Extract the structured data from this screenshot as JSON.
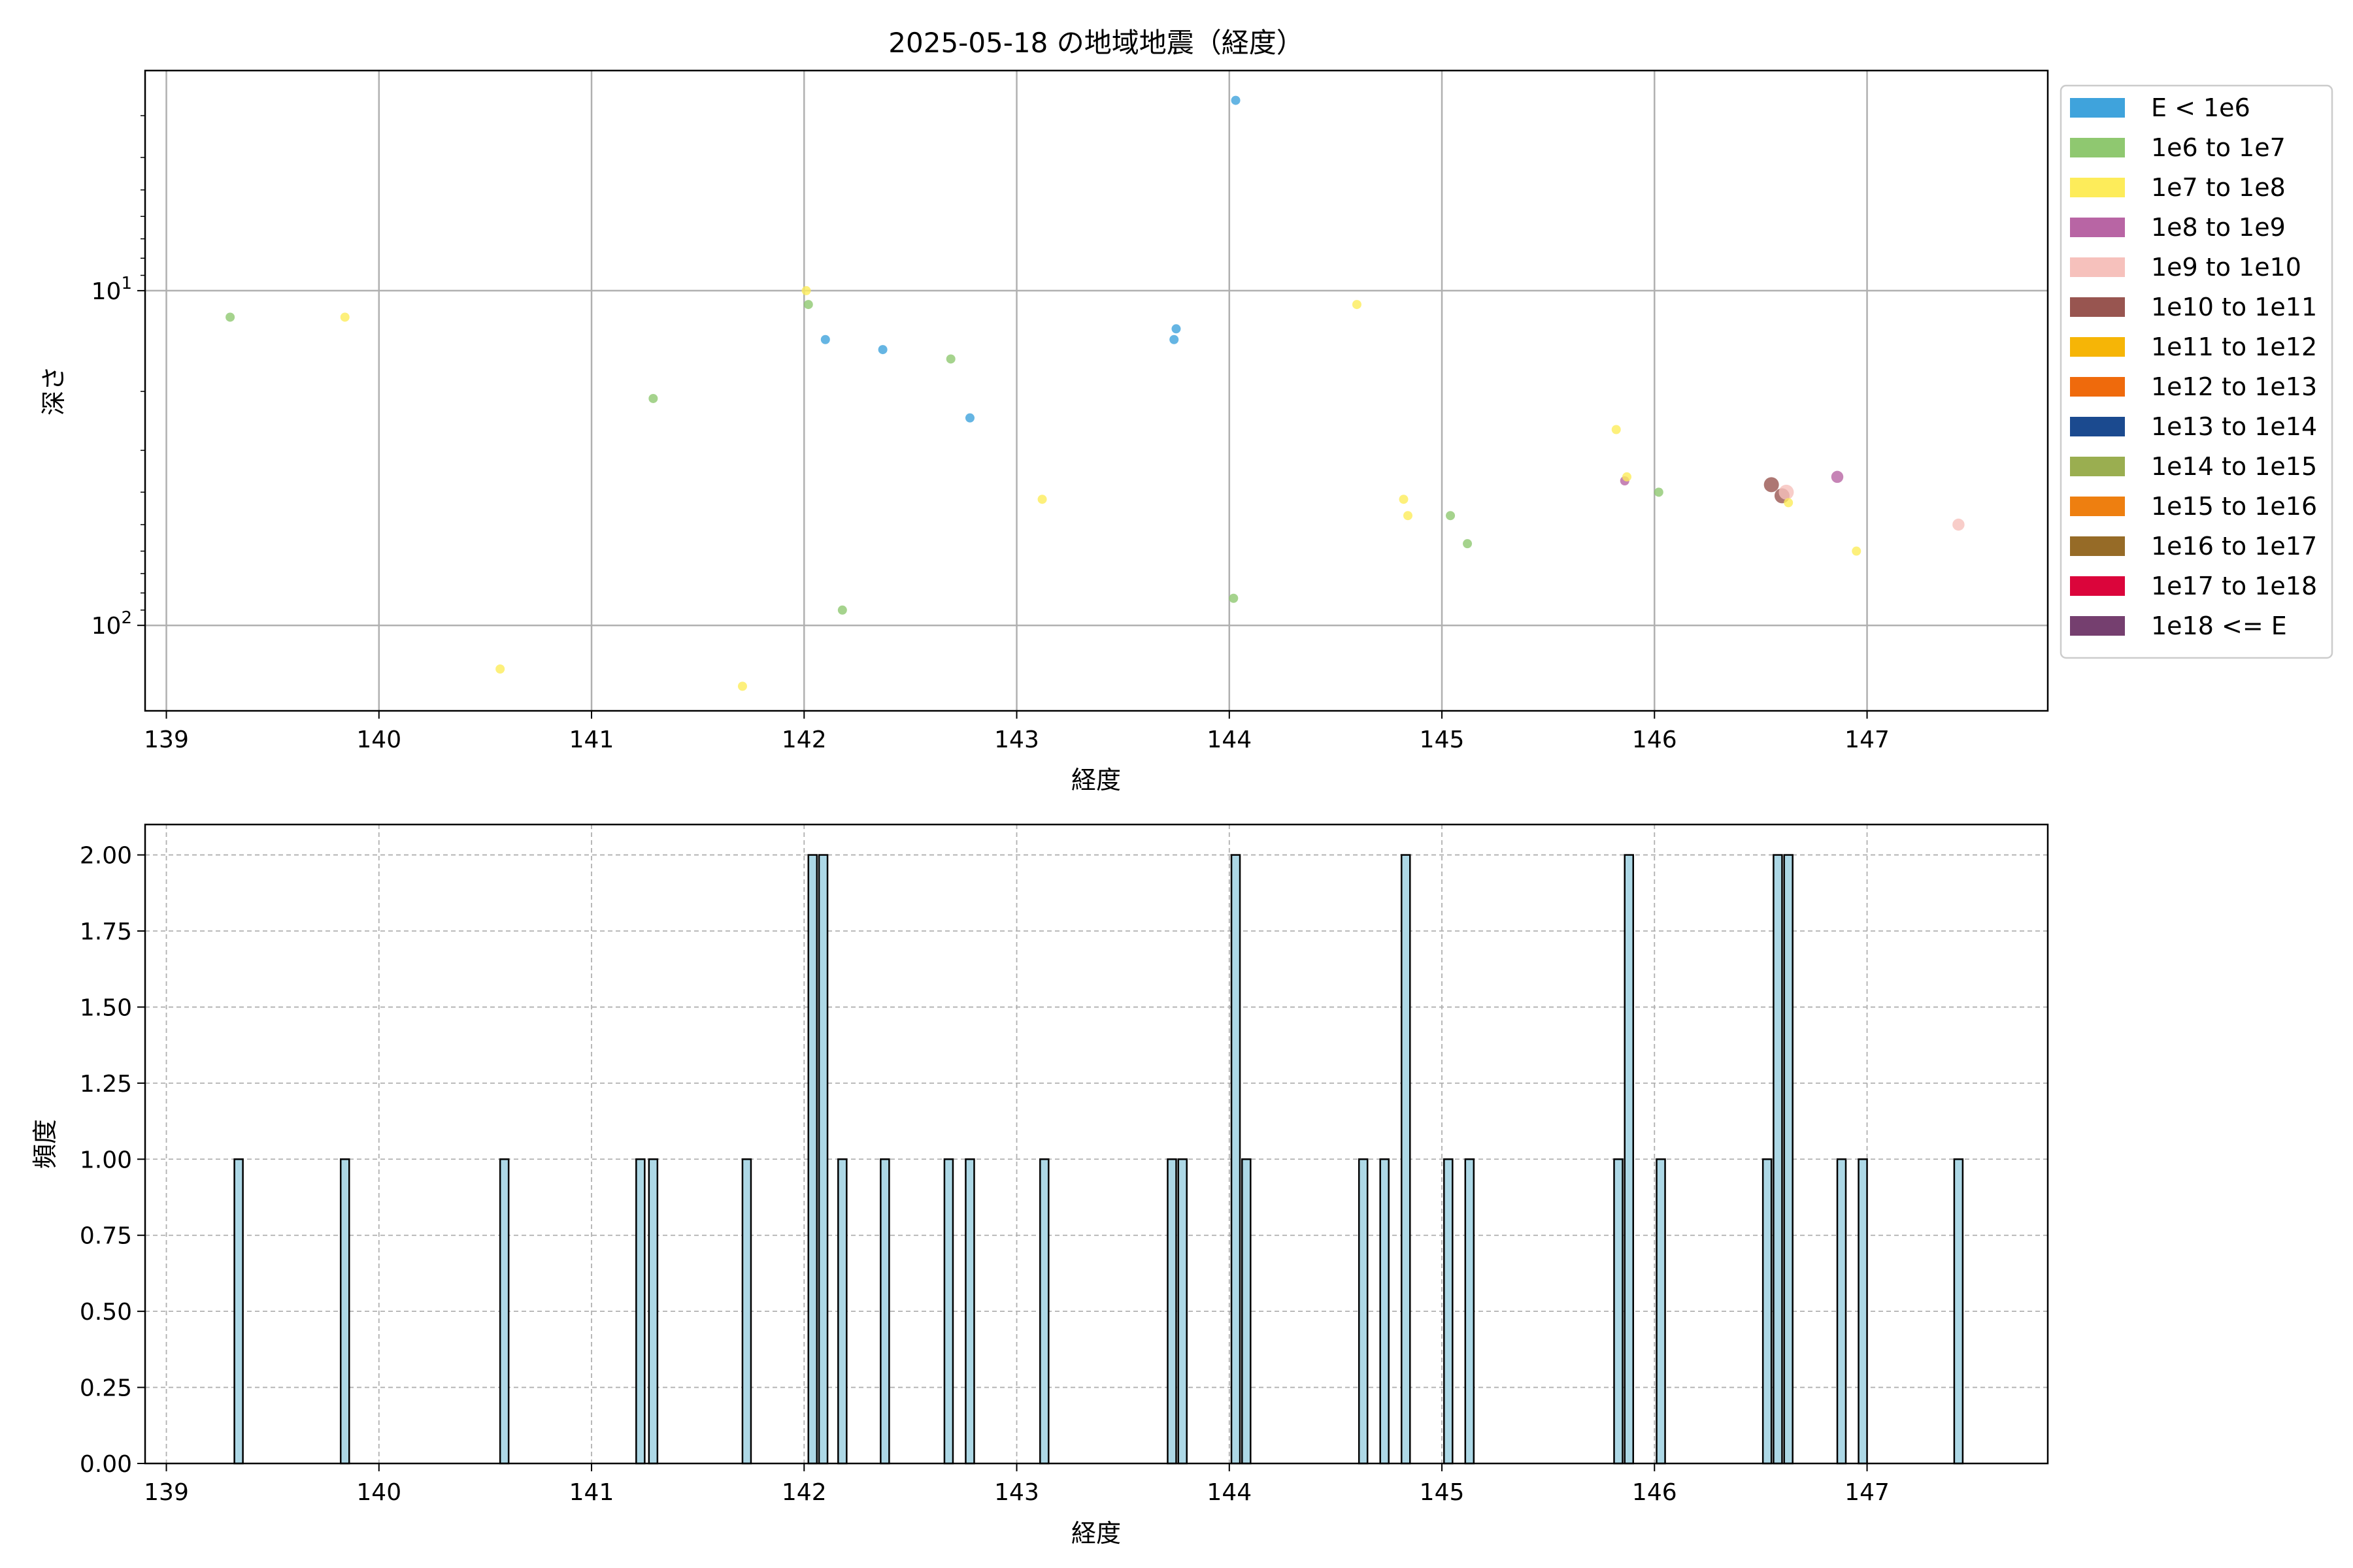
{
  "chart_data": [
    {
      "type": "scatter",
      "title": "2025-05-18 の地域地震（経度）",
      "xlabel": "経度",
      "ylabel": "深さ",
      "yscale": "log",
      "yaxis_inverted": true,
      "xlim": [
        138.9,
        147.85
      ],
      "ylim": [
        180,
        2.2
      ],
      "xticks": [
        139,
        140,
        141,
        142,
        143,
        144,
        145,
        146,
        147
      ],
      "yticks": [
        {
          "value": 10,
          "label": "10^1"
        },
        {
          "value": 100,
          "label": "10^2"
        }
      ],
      "grid": true,
      "legend": {
        "placement": "outside-right",
        "entries": [
          {
            "label": "E < 1e6",
            "color": "#3fa3dc"
          },
          {
            "label": "1e6 to 1e7",
            "color": "#8fc870"
          },
          {
            "label": "1e7 to 1e8",
            "color": "#fdec5a"
          },
          {
            "label": "1e8 to 1e9",
            "color": "#b865a4"
          },
          {
            "label": "1e9 to 1e10",
            "color": "#f6c1bc"
          },
          {
            "label": "1e10 to 1e11",
            "color": "#985550"
          },
          {
            "label": "1e11 to 1e12",
            "color": "#f6b506"
          },
          {
            "label": "1e12 to 1e13",
            "color": "#ef6a0c"
          },
          {
            "label": "1e13 to 1e14",
            "color": "#1b4a8f"
          },
          {
            "label": "1e14 to 1e15",
            "color": "#9aae50"
          },
          {
            "label": "1e15 to 1e16",
            "color": "#ee7f10"
          },
          {
            "label": "1e16 to 1e17",
            "color": "#966b27"
          },
          {
            "label": "1e17 to 1e18",
            "color": "#db053b"
          },
          {
            "label": "1e18 <= E",
            "color": "#753f6f"
          }
        ]
      },
      "points": [
        {
          "x": 144.03,
          "y": 2.7,
          "color": "#3fa3dc",
          "size": 1
        },
        {
          "x": 139.3,
          "y": 12,
          "color": "#8fc870",
          "size": 1
        },
        {
          "x": 139.84,
          "y": 12,
          "color": "#fdec5a",
          "size": 1
        },
        {
          "x": 142.01,
          "y": 10,
          "color": "#fdec5a",
          "size": 1
        },
        {
          "x": 142.02,
          "y": 11,
          "color": "#8fc870",
          "size": 1
        },
        {
          "x": 142.1,
          "y": 14,
          "color": "#3fa3dc",
          "size": 1
        },
        {
          "x": 142.37,
          "y": 15,
          "color": "#3fa3dc",
          "size": 1
        },
        {
          "x": 142.69,
          "y": 16,
          "color": "#8fc870",
          "size": 1
        },
        {
          "x": 143.75,
          "y": 13,
          "color": "#3fa3dc",
          "size": 1
        },
        {
          "x": 143.74,
          "y": 14,
          "color": "#3fa3dc",
          "size": 1
        },
        {
          "x": 144.6,
          "y": 11,
          "color": "#fdec5a",
          "size": 1
        },
        {
          "x": 141.29,
          "y": 21,
          "color": "#8fc870",
          "size": 1
        },
        {
          "x": 142.78,
          "y": 24,
          "color": "#3fa3dc",
          "size": 1
        },
        {
          "x": 145.82,
          "y": 26,
          "color": "#fdec5a",
          "size": 1
        },
        {
          "x": 145.86,
          "y": 37,
          "color": "#b865a4",
          "size": 1
        },
        {
          "x": 145.87,
          "y": 36,
          "color": "#fdec5a",
          "size": 1
        },
        {
          "x": 146.02,
          "y": 40,
          "color": "#8fc870",
          "size": 1
        },
        {
          "x": 146.55,
          "y": 38,
          "color": "#985550",
          "size": 2
        },
        {
          "x": 146.6,
          "y": 41,
          "color": "#985550",
          "size": 2
        },
        {
          "x": 146.62,
          "y": 40,
          "color": "#f6c1bc",
          "size": 2
        },
        {
          "x": 146.63,
          "y": 43,
          "color": "#fdec5a",
          "size": 1
        },
        {
          "x": 146.86,
          "y": 36,
          "color": "#b865a4",
          "size": 1.5
        },
        {
          "x": 143.12,
          "y": 42,
          "color": "#fdec5a",
          "size": 1
        },
        {
          "x": 144.82,
          "y": 42,
          "color": "#fdec5a",
          "size": 1
        },
        {
          "x": 144.84,
          "y": 47,
          "color": "#fdec5a",
          "size": 1
        },
        {
          "x": 145.04,
          "y": 47,
          "color": "#8fc870",
          "size": 1
        },
        {
          "x": 145.12,
          "y": 57,
          "color": "#8fc870",
          "size": 1
        },
        {
          "x": 146.95,
          "y": 60,
          "color": "#fdec5a",
          "size": 1
        },
        {
          "x": 147.43,
          "y": 50,
          "color": "#f6c1bc",
          "size": 1.5
        },
        {
          "x": 144.02,
          "y": 83,
          "color": "#8fc870",
          "size": 1
        },
        {
          "x": 142.18,
          "y": 90,
          "color": "#8fc870",
          "size": 1
        },
        {
          "x": 140.57,
          "y": 135,
          "color": "#fdec5a",
          "size": 1
        },
        {
          "x": 141.71,
          "y": 152,
          "color": "#fdec5a",
          "size": 1
        }
      ]
    },
    {
      "type": "bar",
      "xlabel": "経度",
      "ylabel": "頻度",
      "xlim": [
        138.9,
        147.85
      ],
      "ylim": [
        0,
        2.1
      ],
      "xticks": [
        139,
        140,
        141,
        142,
        143,
        144,
        145,
        146,
        147
      ],
      "yticks": [
        "0.00",
        "0.25",
        "0.50",
        "0.75",
        "1.00",
        "1.25",
        "1.50",
        "1.75",
        "2.00"
      ],
      "grid": true,
      "bar_color": "#add8e6",
      "edge_color": "#000000",
      "bin_width": 0.04,
      "bins": [
        {
          "x": 139.34,
          "count": 1
        },
        {
          "x": 139.84,
          "count": 1
        },
        {
          "x": 140.59,
          "count": 1
        },
        {
          "x": 141.23,
          "count": 1
        },
        {
          "x": 141.29,
          "count": 1
        },
        {
          "x": 141.73,
          "count": 1
        },
        {
          "x": 142.04,
          "count": 2
        },
        {
          "x": 142.09,
          "count": 2
        },
        {
          "x": 142.18,
          "count": 1
        },
        {
          "x": 142.38,
          "count": 1
        },
        {
          "x": 142.68,
          "count": 1
        },
        {
          "x": 142.78,
          "count": 1
        },
        {
          "x": 143.13,
          "count": 1
        },
        {
          "x": 143.73,
          "count": 1
        },
        {
          "x": 143.78,
          "count": 1
        },
        {
          "x": 144.03,
          "count": 2
        },
        {
          "x": 144.08,
          "count": 1
        },
        {
          "x": 144.63,
          "count": 1
        },
        {
          "x": 144.73,
          "count": 1
        },
        {
          "x": 144.83,
          "count": 2
        },
        {
          "x": 145.03,
          "count": 1
        },
        {
          "x": 145.13,
          "count": 1
        },
        {
          "x": 145.83,
          "count": 1
        },
        {
          "x": 145.88,
          "count": 2
        },
        {
          "x": 146.03,
          "count": 1
        },
        {
          "x": 146.53,
          "count": 1
        },
        {
          "x": 146.58,
          "count": 2
        },
        {
          "x": 146.63,
          "count": 2
        },
        {
          "x": 146.88,
          "count": 1
        },
        {
          "x": 146.98,
          "count": 1
        },
        {
          "x": 147.43,
          "count": 1
        }
      ]
    }
  ]
}
